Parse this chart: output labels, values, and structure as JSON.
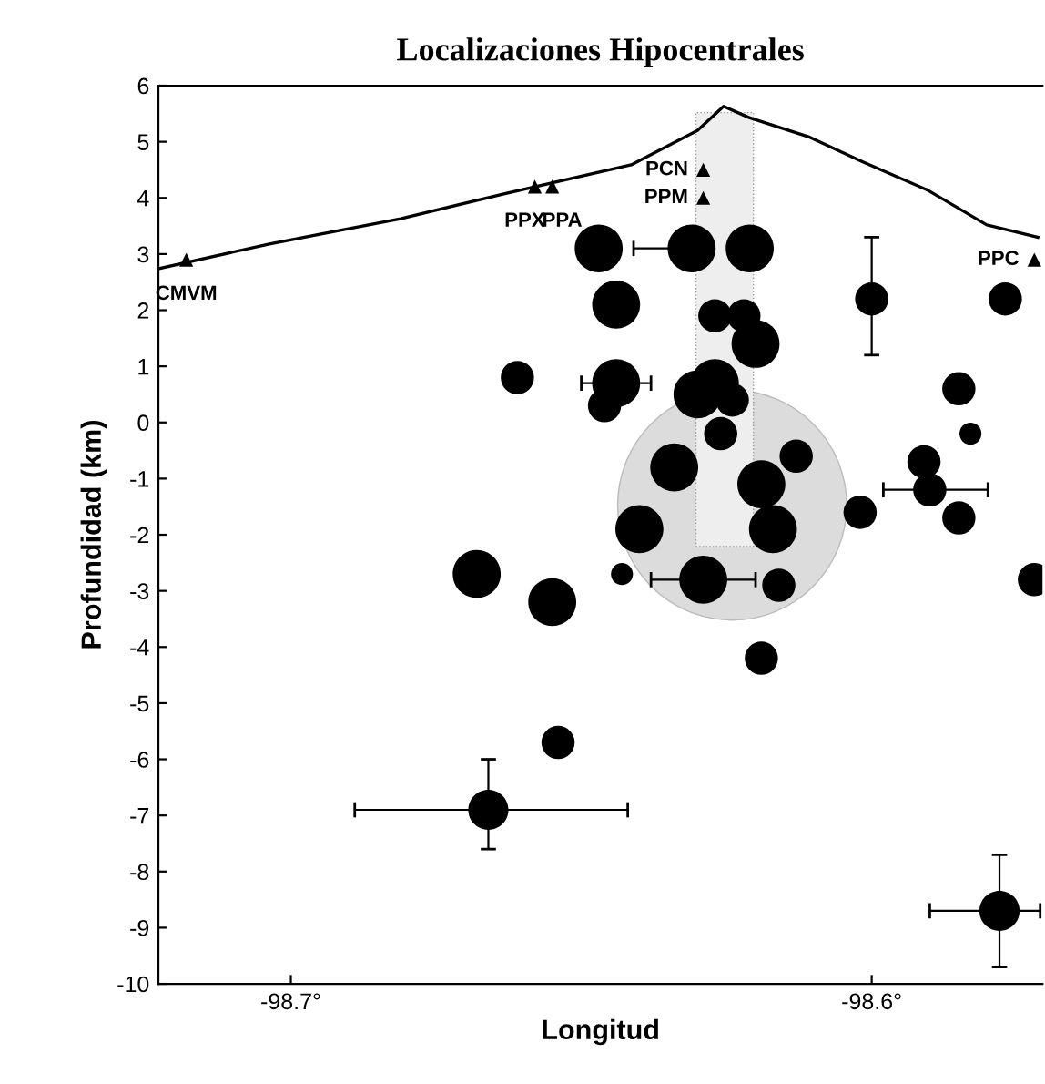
{
  "chart_data": {
    "type": "bubble",
    "title": "Localizaciones Hipocentrales",
    "xlabel": "Longitud",
    "ylabel": "Profundidad (km)",
    "xlim": [
      -98.7228,
      -98.5706
    ],
    "ylim": [
      -10,
      6
    ],
    "xticks": [
      {
        "value": -98.7,
        "label": "-98.7°"
      },
      {
        "value": -98.6,
        "label": "-98.6°"
      }
    ],
    "yticks": [
      6,
      5,
      4,
      3,
      2,
      1,
      0,
      -1,
      -2,
      -3,
      -4,
      -5,
      -6,
      -7,
      -8,
      -9,
      -10
    ],
    "grid": false,
    "series": [
      {
        "type": "line",
        "color": "#000000",
        "x": [
          -98.7228,
          -98.7037,
          -98.6811,
          -98.663,
          -98.6414,
          -98.63,
          -98.6255,
          -98.6211,
          -98.6109,
          -98.6017,
          -98.5904,
          -98.5802,
          -98.5714
        ],
        "values": [
          2.74,
          3.18,
          3.63,
          4.08,
          4.59,
          5.2,
          5.63,
          5.43,
          5.09,
          4.65,
          4.14,
          3.52,
          3.3
        ]
      },
      {
        "type": "scatter",
        "name": "CMVM",
        "marker": "triangle",
        "color": "#000000",
        "x": [
          -98.718
        ],
        "values": [
          2.9
        ]
      },
      {
        "type": "scatter",
        "name": "PPX",
        "marker": "triangle",
        "color": "#000000",
        "x": [
          -98.658
        ],
        "values": [
          4.2
        ]
      },
      {
        "type": "scatter",
        "name": "PPA",
        "marker": "triangle",
        "color": "#000000",
        "x": [
          -98.655
        ],
        "values": [
          4.2
        ]
      },
      {
        "type": "scatter",
        "name": "PCN",
        "marker": "triangle",
        "color": "#000000",
        "x": [
          -98.629
        ],
        "values": [
          4.5
        ]
      },
      {
        "type": "scatter",
        "name": "PPM",
        "marker": "triangle",
        "color": "#000000",
        "x": [
          -98.629
        ],
        "values": [
          4.0
        ]
      },
      {
        "type": "scatter",
        "name": "PPC",
        "marker": "triangle",
        "color": "#000000",
        "x": [
          -98.572
        ],
        "values": [
          2.9
        ]
      },
      {
        "color": "#000000",
        "x": [
          -98.647,
          -98.631,
          -98.621,
          -98.644,
          -98.627,
          -98.622,
          -98.62,
          -98.6,
          -98.577,
          -98.661,
          -98.644,
          -98.646,
          -98.668,
          -98.655,
          -98.643,
          -98.634,
          -98.64,
          -98.63,
          -98.627,
          -98.624,
          -98.626,
          -98.585,
          -98.583,
          -98.591,
          -98.59,
          -98.585,
          -98.602,
          -98.619,
          -98.613,
          -98.629,
          -98.616,
          -98.619,
          -98.572,
          -98.654,
          -98.666,
          -98.578,
          -98.617
        ],
        "values": [
          3.1,
          3.1,
          3.1,
          2.1,
          1.9,
          1.9,
          1.4,
          2.2,
          2.2,
          0.8,
          0.7,
          0.3,
          -2.7,
          -3.2,
          -2.7,
          -0.8,
          -1.9,
          0.5,
          0.7,
          0.4,
          -0.2,
          0.6,
          -0.2,
          -0.7,
          -1.2,
          -1.7,
          -1.6,
          -1.1,
          -0.6,
          -2.8,
          -2.9,
          -4.2,
          -2.8,
          -5.7,
          -6.9,
          -8.7,
          -1.9
        ],
        "sizes": [
          1,
          1,
          1,
          1,
          0.48,
          0.48,
          1,
          0.48,
          0.48,
          0.48,
          1,
          0.48,
          1,
          1,
          0.21,
          1,
          1,
          1,
          1,
          0.48,
          0.48,
          0.48,
          0.21,
          0.48,
          0.48,
          0.48,
          0.48,
          1,
          0.48,
          1,
          0.48,
          0.48,
          0.48,
          0.48,
          0.7,
          0.7,
          1
        ],
        "errors": [
          null,
          null,
          null,
          null,
          null,
          null,
          null,
          [
            1.2,
            3.3
          ],
          null,
          null,
          null,
          null,
          null,
          null,
          null,
          null,
          null,
          null,
          null,
          null,
          null,
          null,
          null,
          null,
          null,
          null,
          null,
          null,
          null,
          null,
          null,
          null,
          null,
          null,
          [
            -7.6,
            -6.0
          ],
          [
            -9.7,
            -7.7
          ],
          null
        ],
        "xerrors": [
          null,
          [
            -98.641,
            -98.631
          ],
          null,
          null,
          null,
          null,
          null,
          null,
          null,
          null,
          [
            -98.65,
            -98.638
          ],
          null,
          null,
          null,
          null,
          null,
          null,
          null,
          null,
          null,
          null,
          null,
          null,
          null,
          [
            -98.598,
            -98.58
          ],
          null,
          null,
          null,
          null,
          [
            -98.638,
            -98.62
          ],
          null,
          null,
          null,
          null,
          [
            -98.689,
            -98.642
          ],
          [
            -98.59,
            -98.571
          ],
          null
        ]
      }
    ]
  }
}
